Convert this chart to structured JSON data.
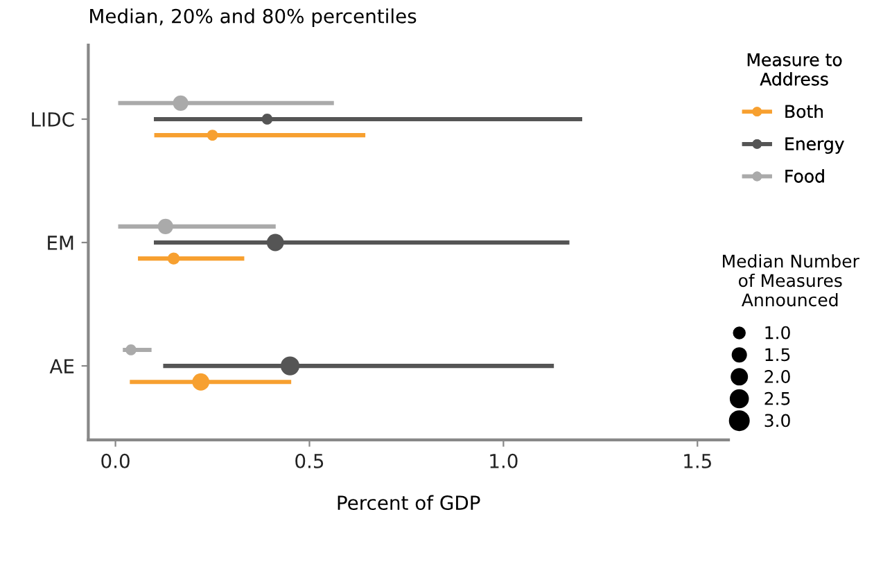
{
  "chart_data": {
    "type": "bubble",
    "orientation": "horizontal",
    "title": "Median, 20% and 80% percentiles",
    "xlabel": "Percent of GDP",
    "legend_title": "Measure to Address",
    "annotations": [
      "Median Number of Measures Announced"
    ],
    "categories": [
      "LIDC",
      "EM",
      "AE"
    ],
    "xlim": [
      -0.07,
      1.58
    ],
    "xticks": [
      {
        "value": 0,
        "label": "0.0"
      },
      0.5,
      {
        "value": 1,
        "label": "1.0"
      },
      1.5
    ],
    "size_legend": [
      {
        "value": 1,
        "label": "1.0"
      },
      1.5,
      {
        "value": 2,
        "label": "2.0"
      },
      2.5,
      {
        "value": 3,
        "label": "3.0"
      }
    ],
    "grid": false,
    "legend": "right",
    "marker": "circle",
    "series": [
      {
        "name": "Both",
        "color": "#f7a030",
        "values": [
          0.25,
          0.15,
          0.22
        ],
        "errors": [
          [
            0.1,
            0.644
          ],
          [
            0.058,
            0.332
          ],
          [
            0.037,
            0.453
          ]
        ],
        "sizes": [
          1.0,
          1.2,
          2.5
        ]
      },
      {
        "name": "Energy",
        "color": "#555555",
        "values": [
          0.391,
          0.412,
          0.45
        ],
        "errors": [
          [
            0.099,
            1.203
          ],
          [
            0.099,
            1.17
          ],
          [
            0.123,
            1.13
          ]
        ],
        "sizes": [
          1.0,
          2.5,
          3.0
        ]
      },
      {
        "name": "Food",
        "color": "#aaaaaa",
        "values": [
          0.168,
          0.129,
          0.04
        ],
        "errors": [
          [
            0.007,
            0.563
          ],
          [
            0.007,
            0.413
          ],
          [
            0.019,
            0.093
          ]
        ],
        "sizes": [
          2.0,
          2.0,
          1.0
        ]
      }
    ]
  }
}
